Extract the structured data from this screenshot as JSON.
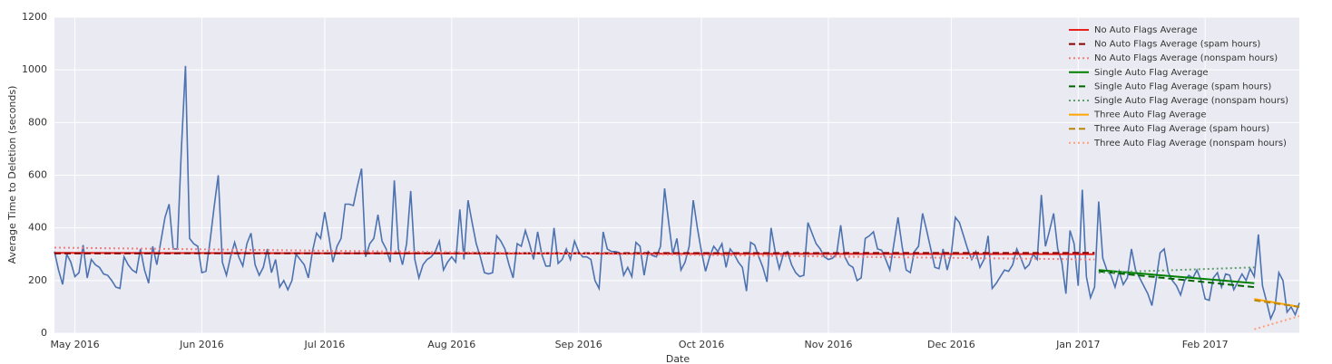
{
  "chart_data": {
    "type": "line",
    "xlabel": "Date",
    "ylabel": "Average Time to Deletion (seconds)",
    "xlim": [
      -5,
      299
    ],
    "ylim": [
      0,
      1200
    ],
    "xticks": [
      {
        "value": 0,
        "label": "May 2016"
      },
      {
        "value": 31,
        "label": "Jun 2016"
      },
      {
        "value": 61,
        "label": "Jul 2016"
      },
      {
        "value": 92,
        "label": "Aug 2016"
      },
      {
        "value": 123,
        "label": "Sep 2016"
      },
      {
        "value": 153,
        "label": "Oct 2016"
      },
      {
        "value": 184,
        "label": "Nov 2016"
      },
      {
        "value": 214,
        "label": "Dec 2016"
      },
      {
        "value": 245,
        "label": "Jan 2017"
      },
      {
        "value": 276,
        "label": "Feb 2017"
      }
    ],
    "yticks": [
      0,
      200,
      400,
      600,
      800,
      1000,
      1200
    ],
    "grid": true,
    "legend": "upper right",
    "series": [
      {
        "color": "#4c72b0",
        "linestyle": "solid",
        "x": [
          -5,
          -4,
          -3,
          -2,
          -1,
          0,
          1,
          2,
          3,
          4,
          5,
          6,
          7,
          8,
          9,
          10,
          11,
          12,
          13,
          14,
          15,
          16,
          17,
          18,
          19,
          20,
          21,
          22,
          23,
          24,
          25,
          26,
          27,
          28,
          29,
          30,
          31,
          32,
          33,
          34,
          35,
          36,
          37,
          38,
          39,
          40,
          41,
          42,
          43,
          44,
          45,
          46,
          47,
          48,
          49,
          50,
          51,
          52,
          53,
          54,
          55,
          56,
          57,
          58,
          59,
          60,
          61,
          62,
          63,
          64,
          65,
          66,
          67,
          68,
          69,
          70,
          71,
          72,
          73,
          74,
          75,
          76,
          77,
          78,
          79,
          80,
          81,
          82,
          83,
          84,
          85,
          86,
          87,
          88,
          89,
          90,
          91,
          92,
          93,
          94,
          95,
          96,
          97,
          98,
          99,
          100,
          101,
          102,
          103,
          104,
          105,
          106,
          107,
          108,
          109,
          110,
          111,
          112,
          113,
          114,
          115,
          116,
          117,
          118,
          119,
          120,
          121,
          122,
          123,
          124,
          125,
          126,
          127,
          128,
          129,
          130,
          131,
          132,
          133,
          134,
          135,
          136,
          137,
          138,
          139,
          140,
          141,
          142,
          143,
          144,
          145,
          146,
          147,
          148,
          149,
          150,
          151,
          152,
          153,
          154,
          155,
          156,
          157,
          158,
          159,
          160,
          161,
          162,
          163,
          164,
          165,
          166,
          167,
          168,
          169,
          170,
          171,
          172,
          173,
          174,
          175,
          176,
          177,
          178,
          179,
          180,
          181,
          182,
          183,
          184,
          185,
          186,
          187,
          188,
          189,
          190,
          191,
          192,
          193,
          194,
          195,
          196,
          197,
          198,
          199,
          200,
          201,
          202,
          203,
          204,
          205,
          206,
          207,
          208,
          209,
          210,
          211,
          212,
          213,
          214,
          215,
          216,
          217,
          218,
          219,
          220,
          221,
          222,
          223,
          224,
          225,
          226,
          227,
          228,
          229,
          230,
          231,
          232,
          233,
          234,
          235,
          236,
          237,
          238,
          239,
          240,
          241,
          242,
          243,
          244,
          245,
          246,
          247,
          248,
          249,
          250,
          251,
          252,
          253,
          254,
          255,
          256,
          257,
          258,
          259,
          260,
          261,
          262,
          263,
          264,
          265,
          266,
          267,
          268,
          269,
          270,
          271,
          272,
          273,
          274,
          275,
          276,
          277,
          278,
          279,
          280,
          281,
          282,
          283,
          284,
          285,
          286,
          287,
          288,
          289,
          290,
          291,
          292,
          293,
          294,
          295,
          296,
          297,
          298,
          299
        ],
        "values": [
          310,
          240,
          185,
          300,
          270,
          215,
          230,
          335,
          210,
          280,
          260,
          250,
          225,
          220,
          200,
          175,
          170,
          290,
          260,
          240,
          230,
          320,
          240,
          190,
          330,
          260,
          350,
          440,
          490,
          320,
          320,
          700,
          1015,
          360,
          340,
          330,
          230,
          235,
          350,
          480,
          600,
          270,
          220,
          290,
          345,
          290,
          255,
          340,
          380,
          260,
          220,
          250,
          320,
          230,
          280,
          175,
          200,
          165,
          200,
          300,
          280,
          260,
          210,
          310,
          380,
          360,
          460,
          370,
          270,
          330,
          360,
          490,
          490,
          485,
          560,
          625,
          290,
          340,
          360,
          450,
          350,
          320,
          270,
          580,
          320,
          260,
          340,
          540,
          280,
          210,
          260,
          280,
          290,
          310,
          350,
          240,
          270,
          290,
          270,
          470,
          280,
          505,
          420,
          340,
          290,
          230,
          225,
          230,
          370,
          350,
          320,
          260,
          210,
          340,
          330,
          390,
          340,
          280,
          385,
          300,
          255,
          255,
          400,
          265,
          280,
          320,
          280,
          350,
          310,
          290,
          290,
          280,
          200,
          170,
          385,
          320,
          310,
          310,
          305,
          220,
          250,
          215,
          345,
          330,
          220,
          310,
          295,
          290,
          330,
          550,
          420,
          300,
          360,
          240,
          270,
          330,
          505,
          400,
          310,
          235,
          290,
          330,
          310,
          340,
          250,
          320,
          300,
          270,
          250,
          160,
          345,
          335,
          290,
          250,
          195,
          400,
          310,
          245,
          300,
          310,
          260,
          230,
          215,
          220,
          420,
          380,
          340,
          320,
          290,
          280,
          285,
          300,
          410,
          290,
          260,
          250,
          200,
          210,
          360,
          370,
          385,
          320,
          315,
          280,
          240,
          340,
          440,
          330,
          240,
          230,
          310,
          330,
          455,
          390,
          320,
          250,
          245,
          320,
          240,
          300,
          440,
          420,
          370,
          320,
          280,
          310,
          250,
          280,
          370,
          170,
          190,
          215,
          240,
          235,
          260,
          320,
          285,
          245,
          260,
          300,
          280,
          525,
          330,
          390,
          455,
          320,
          270,
          150,
          390,
          340,
          180,
          545,
          215,
          135,
          175,
          500,
          285,
          240,
          220,
          175,
          235,
          185,
          210,
          320,
          240,
          210,
          180,
          150,
          105,
          200,
          305,
          320,
          230,
          200,
          180,
          145,
          200,
          220,
          210,
          240,
          200,
          130,
          125,
          210,
          230,
          175,
          225,
          220,
          165,
          195,
          225,
          200,
          245,
          215,
          375,
          180,
          120,
          55,
          90,
          230,
          200,
          80,
          100,
          70,
          115
        ]
      },
      {
        "name": "No Auto Flags Average",
        "color": "#e8201e",
        "linestyle": "solid",
        "x": [
          -5,
          249
        ],
        "values": [
          305,
          300
        ]
      },
      {
        "name": "No Auto Flags Average (spam hours)",
        "color": "#8b0000",
        "linestyle": "dashed",
        "x": [
          -5,
          249
        ],
        "values": [
          303,
          305
        ]
      },
      {
        "name": "No Auto Flags Average (nonspam hours)",
        "color": "#f08080",
        "linestyle": "dotted",
        "x": [
          -5,
          249
        ],
        "values": [
          325,
          280
        ]
      },
      {
        "name": "Single Auto Flag Average",
        "color": "#008000",
        "linestyle": "solid",
        "x": [
          250,
          288
        ],
        "values": [
          240,
          190
        ]
      },
      {
        "name": "Single Auto Flag Average (spam hours)",
        "color": "#006400",
        "linestyle": "dashed",
        "x": [
          250,
          288
        ],
        "values": [
          235,
          175
        ]
      },
      {
        "name": "Single Auto Flag Average (nonspam hours)",
        "color": "#5f9e6e",
        "linestyle": "dotted",
        "x": [
          250,
          288
        ],
        "values": [
          230,
          250
        ]
      },
      {
        "name": "Three Auto Flag Average",
        "color": "#ffa500",
        "linestyle": "solid",
        "x": [
          288,
          299
        ],
        "values": [
          130,
          100
        ]
      },
      {
        "name": "Three Auto Flag Average (spam hours)",
        "color": "#b8860b",
        "linestyle": "dashed",
        "x": [
          288,
          299
        ],
        "values": [
          125,
          100
        ]
      },
      {
        "name": "Three Auto Flag Average (nonspam hours)",
        "color": "#ffa07a",
        "linestyle": "dotted",
        "x": [
          288,
          299
        ],
        "values": [
          15,
          65
        ]
      }
    ]
  }
}
